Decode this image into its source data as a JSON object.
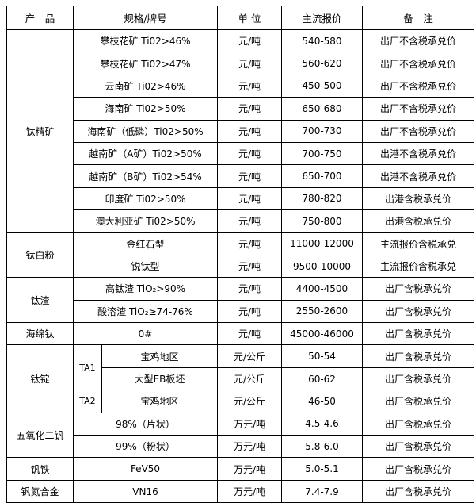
{
  "headers": [
    "产　品",
    "规格/牌号",
    "单 位",
    "主流报价",
    "备　注"
  ],
  "groups": [
    {
      "product": "钛精矿",
      "rows": [
        {
          "spec": "攀枝花矿 Ti02>46%",
          "unit": "元/吨",
          "price": "540-580",
          "note": "出厂不含税承兑价"
        },
        {
          "spec": "攀枝花矿 Ti02>47%",
          "unit": "元/吨",
          "price": "560-620",
          "note": "出厂不含税承兑价"
        },
        {
          "spec": "云南矿 Ti02>46%",
          "unit": "元/吨",
          "price": "450-500",
          "note": "出厂不含税承兑价"
        },
        {
          "spec": "海南矿 Ti02>50%",
          "unit": "元/吨",
          "price": "650-680",
          "note": "出厂不含税承兑价"
        },
        {
          "spec": "海南矿（低磷）Ti02>50%",
          "unit": "元/吨",
          "price": "700-730",
          "note": "出厂不含税承兑价"
        },
        {
          "spec": "越南矿（A矿）Ti02>50%",
          "unit": "元/吨",
          "price": "700-750",
          "note": "出港不含税承兑价"
        },
        {
          "spec": "越南矿（B矿）Ti02>54%",
          "unit": "元/吨",
          "price": "650-700",
          "note": "出港不含税承兑价"
        },
        {
          "spec": "印度矿 Ti02>50%",
          "unit": "元/吨",
          "price": "780-820",
          "note": "出港含税承兑价"
        },
        {
          "spec": "澳大利亚矿 Ti02>50%",
          "unit": "元/吨",
          "price": "750-800",
          "note": "出港含税承兑价"
        }
      ]
    },
    {
      "product": "钛白粉",
      "rows": [
        {
          "spec": "金红石型",
          "unit": "元/吨",
          "price": "11000-12000",
          "note": "主流报价含税承兑"
        },
        {
          "spec": "锐钛型",
          "unit": "元/吨",
          "price": "9500-10000",
          "note": "主流报价含税承兑"
        }
      ]
    },
    {
      "product": "钛渣",
      "rows": [
        {
          "spec": "高钛渣 TiO₂>90%",
          "unit": "元/吨",
          "price": "4400-4500",
          "note": "出厂含税承兑价"
        },
        {
          "spec": "酸溶渣 TiO₂≥74-76%",
          "unit": "元/吨",
          "price": "2550-2600",
          "note": "出厂含税承兑价"
        }
      ]
    },
    {
      "product": "海绵钛",
      "rows": [
        {
          "spec": "0#",
          "unit": "元/吨",
          "price": "45000-46000",
          "note": "出厂含税承兑价"
        }
      ]
    },
    {
      "product": "钛锭",
      "rows": [
        {
          "grade": "TA1",
          "spec": "宝鸡地区",
          "unit": "元/公斤",
          "price": "50-54",
          "note": "出厂含税承兑价"
        },
        {
          "spec": "大型EB板坯",
          "unit": "元/公斤",
          "price": "60-62",
          "note": "出厂含税承兑价"
        },
        {
          "grade": "TA2",
          "spec": "宝鸡地区",
          "unit": "元/公斤",
          "price": "46-50",
          "note": "出厂含税承兑价"
        }
      ]
    },
    {
      "product": "五氧化二钒",
      "rows": [
        {
          "spec": "98%（片状）",
          "unit": "万元/吨",
          "price": "4.5-4.6",
          "note": "出厂含税承兑价"
        },
        {
          "spec": "99%（粉状）",
          "unit": "万元/吨",
          "price": "5.8-6.0",
          "note": "出厂含税承兑价"
        }
      ]
    },
    {
      "product": "钒铁",
      "rows": [
        {
          "spec": "FeV50",
          "unit": "万元/吨",
          "price": "5.0-5.1",
          "note": "出厂含税承兑价"
        }
      ]
    },
    {
      "product": "钒氮合金",
      "rows": [
        {
          "spec": "VN16",
          "unit": "万元/吨",
          "price": "7.4-7.9",
          "note": "出厂含税承兑价"
        }
      ]
    }
  ]
}
